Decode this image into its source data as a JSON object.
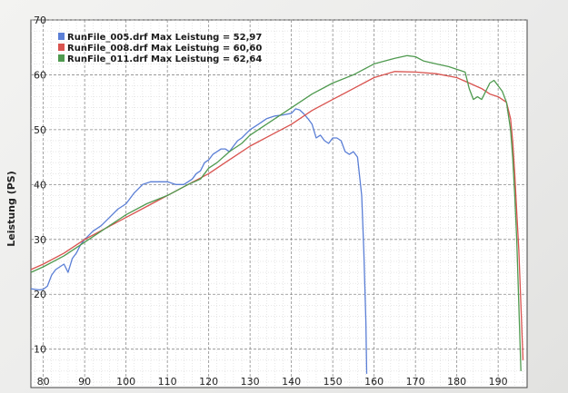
{
  "chart_data": {
    "type": "line",
    "title": "",
    "xlabel": "",
    "ylabel": "Leistung (PS)",
    "xlim": [
      77,
      197
    ],
    "ylim": [
      3,
      70
    ],
    "x_ticks": [
      80,
      90,
      100,
      110,
      120,
      130,
      140,
      150,
      160,
      170,
      180,
      190
    ],
    "y_ticks": [
      10,
      20,
      30,
      40,
      50,
      60,
      70
    ],
    "grid": true,
    "legend_position": "top-left",
    "series": [
      {
        "name": "RunFile_005.drf Max Leistung = 52,97",
        "color": "#5b7fd6",
        "x": [
          77,
          79,
          80,
          81,
          82,
          83,
          84,
          85,
          86,
          87,
          88,
          89,
          90,
          92,
          94,
          96,
          98,
          100,
          102,
          104,
          106,
          108,
          110,
          112,
          114,
          116,
          117,
          118,
          119,
          120,
          121,
          122,
          123,
          124,
          125,
          126,
          127,
          128,
          130,
          132,
          134,
          136,
          138,
          140,
          141,
          142,
          143,
          144,
          145,
          146,
          147,
          148,
          149,
          150,
          151,
          152,
          153,
          154,
          155,
          156,
          157,
          157.5,
          158,
          158.2
        ],
        "y": [
          21.0,
          20.8,
          20.9,
          21.5,
          23.5,
          24.5,
          25.0,
          25.5,
          24.0,
          26.5,
          27.5,
          29.0,
          30.0,
          31.5,
          32.5,
          34.0,
          35.5,
          36.5,
          38.5,
          40.0,
          40.5,
          40.5,
          40.5,
          40.0,
          40.0,
          41.0,
          42.0,
          42.5,
          44.0,
          44.5,
          45.5,
          46.0,
          46.5,
          46.5,
          46.0,
          47.0,
          48.0,
          48.5,
          50.0,
          51.0,
          52.0,
          52.5,
          52.7,
          53.0,
          53.8,
          53.6,
          52.9,
          52.0,
          51.0,
          48.5,
          49.0,
          48.0,
          47.5,
          48.5,
          48.5,
          48.0,
          46.0,
          45.5,
          46.0,
          45.0,
          38.0,
          28.0,
          15.0,
          5.5
        ]
      },
      {
        "name": "RunFile_008.drf Max Leistung = 60,60",
        "color": "#d9534f",
        "x": [
          77,
          80,
          85,
          90,
          95,
          100,
          105,
          110,
          115,
          120,
          125,
          130,
          135,
          140,
          145,
          150,
          155,
          160,
          165,
          170,
          175,
          180,
          183,
          186,
          188,
          190,
          191,
          192,
          193,
          193.5,
          194,
          194.5,
          195,
          195.5,
          196
        ],
        "y": [
          24.5,
          25.5,
          27.5,
          30.0,
          32.0,
          34.0,
          36.0,
          38.0,
          40.0,
          42.0,
          44.5,
          47.0,
          49.0,
          51.0,
          53.5,
          55.5,
          57.5,
          59.5,
          60.6,
          60.5,
          60.2,
          59.5,
          58.5,
          57.5,
          56.5,
          56.0,
          55.5,
          55.0,
          52.0,
          48.0,
          42.0,
          35.0,
          28.0,
          18.0,
          8.0
        ]
      },
      {
        "name": "RunFile_011.drf Max Leistung = 62,64",
        "color": "#4f9a4f",
        "x": [
          77,
          80,
          85,
          90,
          95,
          100,
          105,
          110,
          115,
          118,
          120,
          122,
          125,
          128,
          130,
          135,
          140,
          145,
          150,
          155,
          160,
          165,
          168,
          170,
          172,
          175,
          178,
          180,
          182,
          183,
          184,
          185,
          186,
          187,
          188,
          189,
          190,
          191,
          192,
          193,
          193.5,
          194,
          194.5,
          195,
          195.5
        ],
        "y": [
          24.0,
          25.0,
          27.0,
          29.5,
          32.0,
          34.5,
          36.5,
          38.0,
          40.0,
          41.0,
          43.0,
          44.0,
          46.0,
          47.5,
          49.0,
          51.5,
          54.0,
          56.5,
          58.5,
          60.0,
          62.0,
          63.0,
          63.5,
          63.3,
          62.5,
          62.0,
          61.5,
          61.0,
          60.5,
          57.5,
          55.5,
          56.0,
          55.5,
          57.0,
          58.5,
          59.0,
          58.0,
          57.0,
          55.0,
          50.0,
          45.0,
          38.0,
          30.0,
          18.0,
          6.0
        ]
      }
    ]
  }
}
